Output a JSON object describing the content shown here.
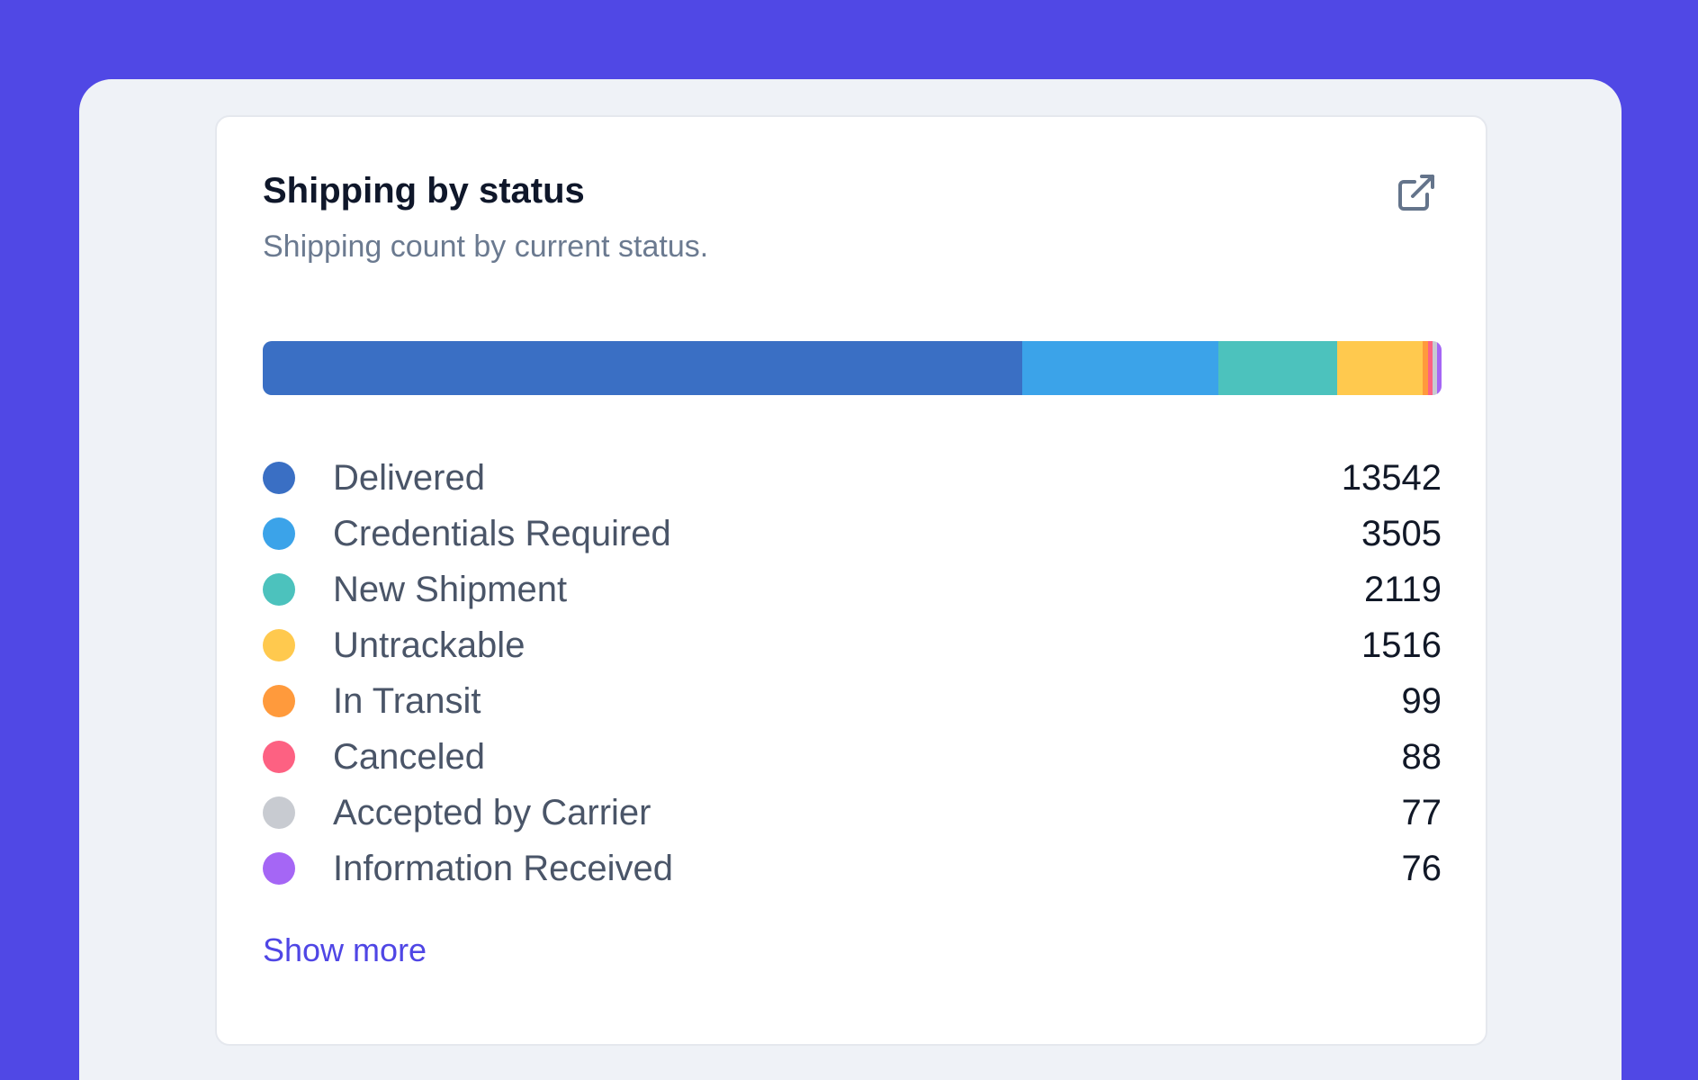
{
  "card": {
    "title": "Shipping by status",
    "subtitle": "Shipping count by current status.",
    "external_link_icon": "external-link-icon",
    "show_more_label": "Show more"
  },
  "colors": {
    "background": "#5048e5",
    "link": "#4f46e5"
  },
  "chart_data": {
    "type": "bar",
    "orientation": "horizontal-stacked",
    "categories": [
      "Delivered",
      "Credentials Required",
      "New Shipment",
      "Untrackable",
      "In Transit",
      "Canceled",
      "Accepted by Carrier",
      "Information Received"
    ],
    "values": [
      13542,
      3505,
      2119,
      1516,
      99,
      88,
      77,
      76
    ],
    "colors": [
      "#3a6fc4",
      "#3ba3e9",
      "#4cc2bd",
      "#ffc94e",
      "#ff9a3c",
      "#fd6182",
      "#c8cbd1",
      "#a566f5"
    ]
  }
}
